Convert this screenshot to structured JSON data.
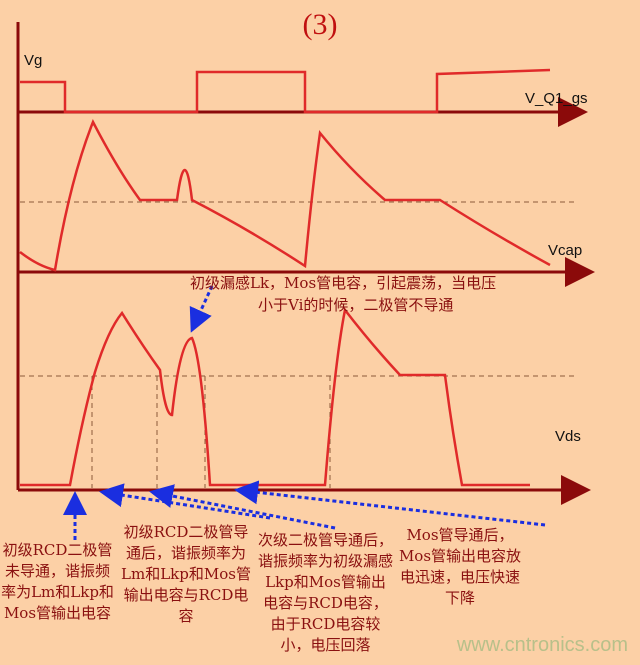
{
  "title": "(3)",
  "signals": {
    "vg": "Vg",
    "vq1": "V_Q1_gs",
    "vcap": "Vcap",
    "vds": "Vds"
  },
  "annotations": {
    "top": [
      "初级漏感Lk，Mos管电容，引起震荡，当电压",
      "小于Vi的时候，二极管不导通"
    ],
    "a1": "初级RCD二极管未导通，谐振频率为Lm和Lkp和Mos管输出电容",
    "a2": "初级RCD二极管导通后，谐振频率为Lm和Lkp和Mos管输出电容与RCD电容",
    "a3": "次级二极管导通后，谐振频率为初级漏感Lkp和Mos管输出电容与RCD电容，由于RCD电容较小，电压回落",
    "a4": "Mos管导通后，Mos管输出电容放电迅速，电压快速下降"
  },
  "watermark": "www.cntronics.com",
  "colors": {
    "axis": "#8b0a0a",
    "wave": "#e02a2a",
    "arrow": "#1a2ee0",
    "background": "#fcd0a6"
  }
}
